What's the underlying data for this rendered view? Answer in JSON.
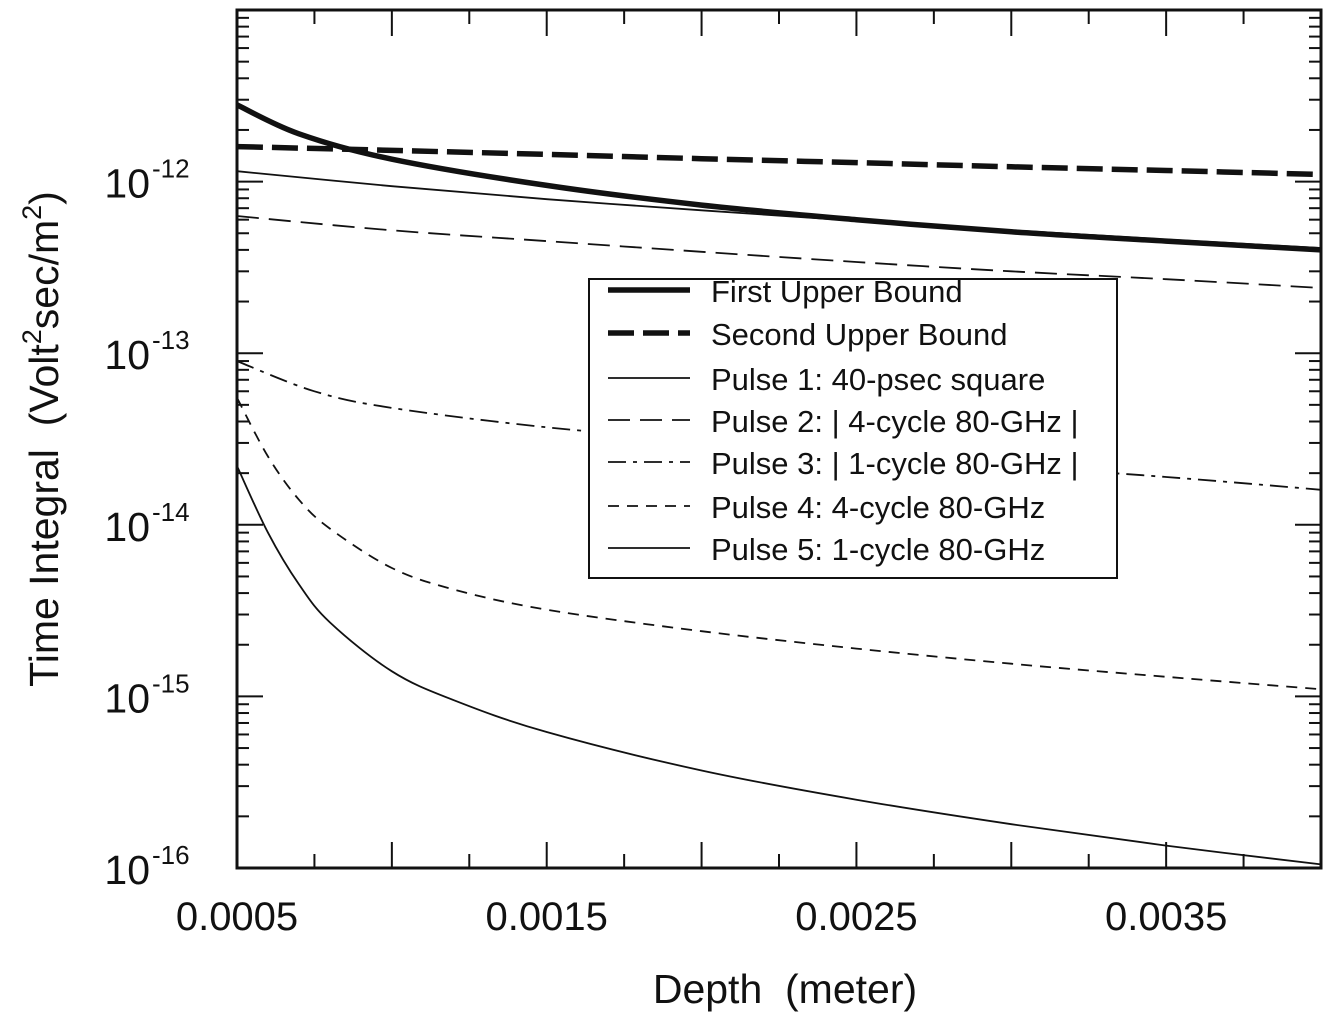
{
  "chart_data": {
    "type": "line",
    "xlabel": "Depth  (meter)",
    "ylabel": {
      "main": "Time Integral  (Volt",
      "sup": "2",
      "mid": "sec/m",
      "sup2": "2",
      "end": ")"
    },
    "xscale": "linear",
    "yscale": "log",
    "xlim": [
      0.0005,
      0.004
    ],
    "ylim": [
      1e-16,
      1e-11
    ],
    "x_ticks": [
      "0.0005",
      "0.0015",
      "0.0025",
      "0.0035"
    ],
    "x_tick_values": [
      0.0005,
      0.0015,
      0.0025,
      0.0035
    ],
    "y_ticks": [
      {
        "base": "10",
        "exp": "-16",
        "value": 1e-16
      },
      {
        "base": "10",
        "exp": "-15",
        "value": 1e-15
      },
      {
        "base": "10",
        "exp": "-14",
        "value": 1e-14
      },
      {
        "base": "10",
        "exp": "-13",
        "value": 1e-13
      },
      {
        "base": "10",
        "exp": "-12",
        "value": 1e-12
      }
    ],
    "legend_position": "center-right",
    "grid": false,
    "series": [
      {
        "name": "First Upper Bound",
        "style": "thick-solid",
        "x": [
          0.0005,
          0.0007,
          0.001,
          0.0015,
          0.002,
          0.0025,
          0.003,
          0.0035,
          0.004
        ],
        "y": [
          2.8e-12,
          1.9e-12,
          1.35e-12,
          9.5e-13,
          7.3e-13,
          6e-13,
          5.1e-13,
          4.5e-13,
          4e-13
        ]
      },
      {
        "name": "Second Upper Bound",
        "style": "thick-dashed",
        "x": [
          0.0005,
          0.001,
          0.0015,
          0.002,
          0.0025,
          0.003,
          0.0035,
          0.004
        ],
        "y": [
          1.6e-12,
          1.52e-12,
          1.44e-12,
          1.36e-12,
          1.29e-12,
          1.22e-12,
          1.16e-12,
          1.1e-12
        ]
      },
      {
        "name": "Pulse 1: 40-psec square",
        "style": "thin-solid",
        "x": [
          0.0005,
          0.001,
          0.0015,
          0.002,
          0.0025,
          0.003,
          0.0035,
          0.004
        ],
        "y": [
          1.15e-12,
          9.4e-13,
          7.9e-13,
          6.8e-13,
          5.9e-13,
          5.2e-13,
          4.6e-13,
          4.1e-13
        ]
      },
      {
        "name": "Pulse 2: | 4-cycle 80-GHz |",
        "style": "long-dash",
        "x": [
          0.0005,
          0.001,
          0.0015,
          0.002,
          0.0025,
          0.003,
          0.0035,
          0.004
        ],
        "y": [
          6.3e-13,
          5.2e-13,
          4.5e-13,
          3.9e-13,
          3.4e-13,
          3e-13,
          2.7e-13,
          2.4e-13
        ]
      },
      {
        "name": "Pulse 3: | 1-cycle 80-GHz |",
        "style": "dash-dot",
        "x": [
          0.0005,
          0.00075,
          0.001,
          0.0015,
          0.002,
          0.0025,
          0.003,
          0.0035,
          0.004
        ],
        "y": [
          9e-14,
          6e-14,
          4.8e-14,
          3.7e-14,
          3.1e-14,
          2.6e-14,
          2.2e-14,
          1.9e-14,
          1.6e-14
        ]
      },
      {
        "name": "Pulse 4: 4-cycle 80-GHz",
        "style": "short-dash",
        "x": [
          0.0005,
          0.0006,
          0.0007,
          0.0008,
          0.001,
          0.0012,
          0.0015,
          0.002,
          0.0025,
          0.003,
          0.0035,
          0.004
        ],
        "y": [
          5.5e-14,
          2.5e-14,
          1.4e-14,
          9.5e-15,
          5.6e-15,
          4.2e-15,
          3.2e-15,
          2.4e-15,
          1.9e-15,
          1.55e-15,
          1.3e-15,
          1.1e-15
        ]
      },
      {
        "name": "Pulse 5: 1-cycle 80-GHz",
        "style": "thin-solid",
        "x": [
          0.0005,
          0.0006,
          0.0007,
          0.0008,
          0.001,
          0.0012,
          0.0015,
          0.002,
          0.0025,
          0.003,
          0.0035,
          0.004
        ],
        "y": [
          2.2e-14,
          9e-15,
          4.5e-15,
          2.7e-15,
          1.4e-15,
          9.5e-16,
          6.2e-16,
          3.7e-16,
          2.5e-16,
          1.8e-16,
          1.35e-16,
          1.05e-16
        ]
      }
    ]
  }
}
